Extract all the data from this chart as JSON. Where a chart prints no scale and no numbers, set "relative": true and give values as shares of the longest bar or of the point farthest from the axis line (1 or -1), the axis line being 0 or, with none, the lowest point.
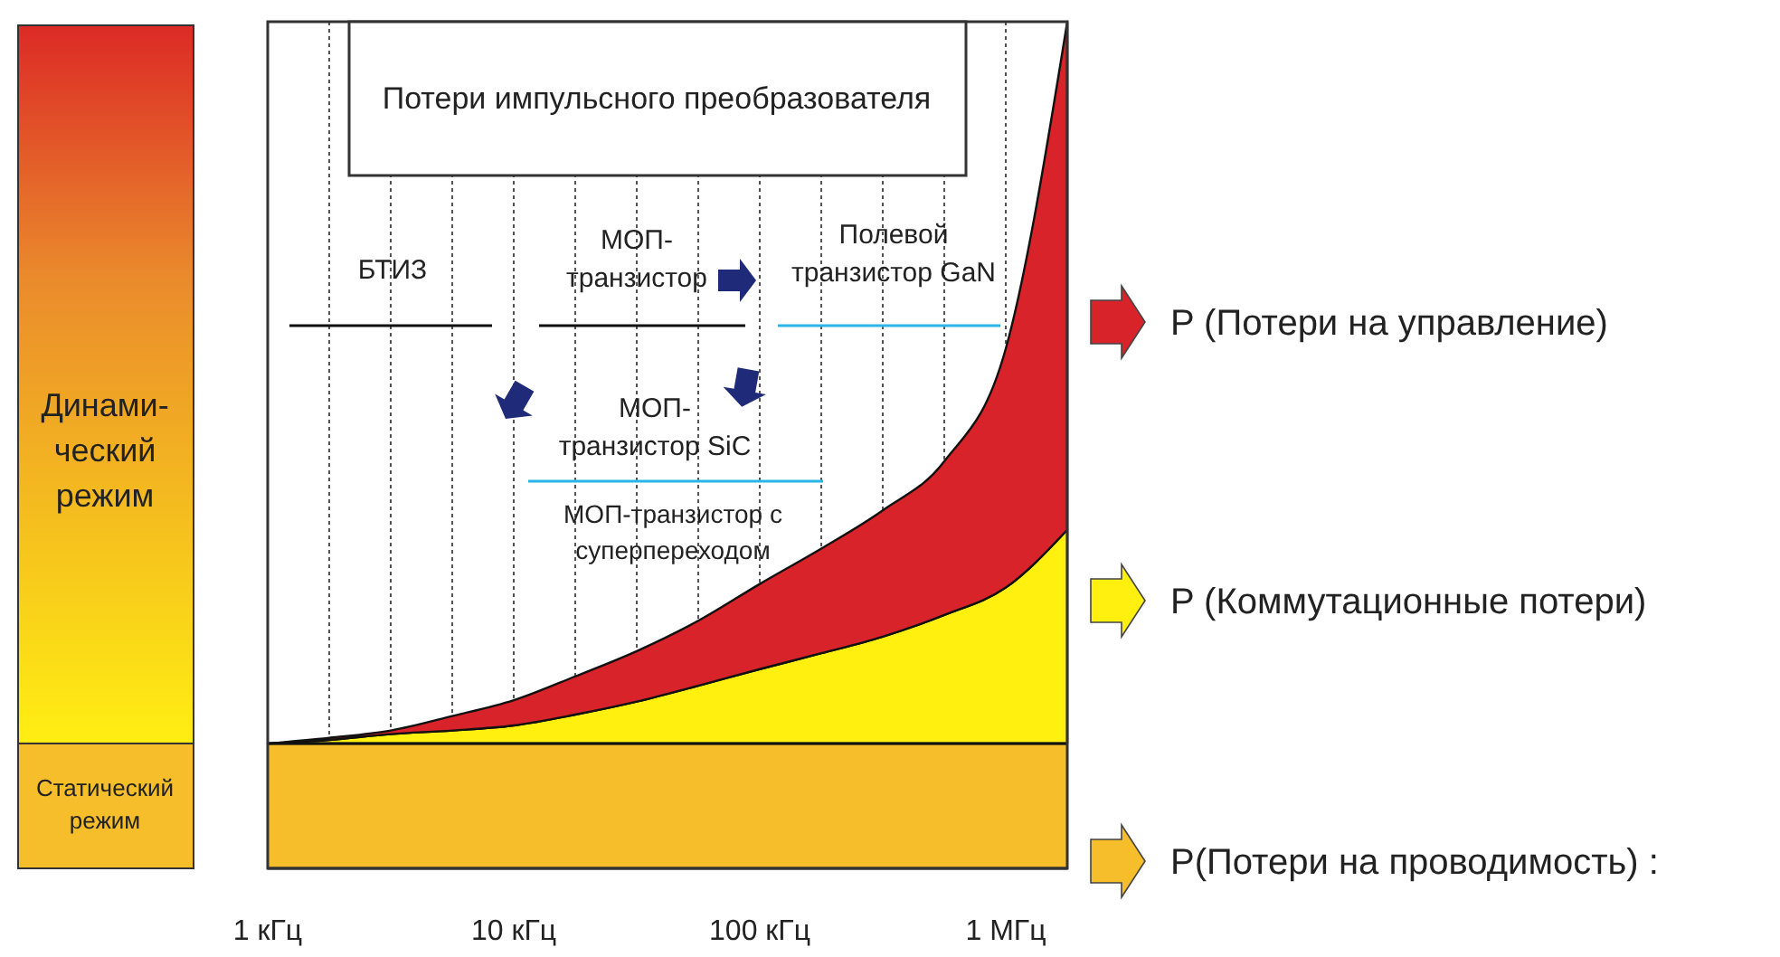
{
  "chart_data": {
    "type": "area",
    "stacked": true,
    "relative": true,
    "grid": "x",
    "legend": "right",
    "title": "Потери импульсного преобразователя",
    "categories": [
      "1 кГц",
      null,
      null,
      null,
      "10 кГц",
      null,
      null,
      null,
      "100 кГц",
      null,
      null,
      null,
      "1 МГц",
      null
    ],
    "series": [
      {
        "name": "P (Коммутационные потери)",
        "color": "#fff00f",
        "values": [
          0,
          0.005,
          0.013,
          0.018,
          0.025,
          0.04,
          0.058,
          0.08,
          0.103,
          0.125,
          0.148,
          0.178,
          0.216,
          0.296
        ]
      },
      {
        "name": "P (Потери на управление)",
        "color": "#d9232a",
        "values": [
          0,
          0.003,
          0.005,
          0.02,
          0.035,
          0.053,
          0.07,
          0.09,
          0.118,
          0.145,
          0.175,
          0.213,
          0.331,
          0.704
        ]
      }
    ],
    "bands": [
      {
        "axis": "y",
        "from": -0.173,
        "to": 0,
        "label": "P(Потери на проводимость) :",
        "color": "#f5be2a"
      }
    ],
    "annotations": [
      "БТИЗ",
      "МОП-транзистор",
      "Полевой транзистор GaN",
      "МОП-транзистор SiC",
      "МОП-транзистор с суперпереходом",
      "Динами-ческий режим",
      "Статический режим"
    ]
  }
}
